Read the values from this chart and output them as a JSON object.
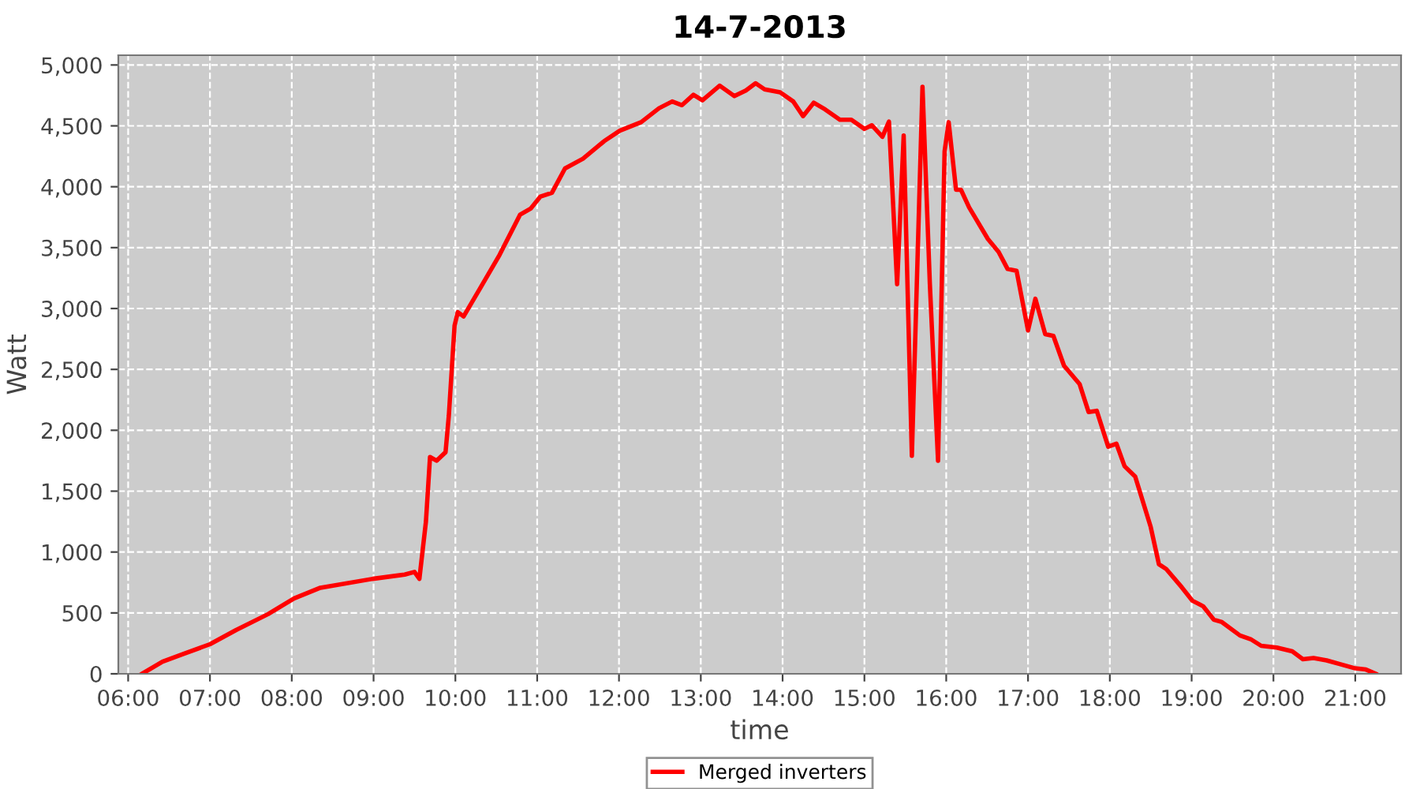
{
  "chart_data": {
    "type": "line",
    "title": "14-7-2013",
    "xlabel": "time",
    "ylabel": "Watt",
    "x": [
      6.17,
      6.42,
      6.68,
      7.0,
      7.32,
      7.71,
      8.03,
      8.35,
      8.99,
      9.38,
      9.5,
      9.56,
      9.64,
      9.69,
      9.77,
      9.88,
      9.92,
      9.99,
      10.03,
      10.1,
      10.28,
      10.54,
      10.79,
      10.92,
      11.04,
      11.18,
      11.34,
      11.56,
      11.82,
      12.01,
      12.27,
      12.49,
      12.65,
      12.77,
      12.91,
      13.02,
      13.23,
      13.41,
      13.55,
      13.67,
      13.78,
      13.97,
      14.13,
      14.25,
      14.38,
      14.52,
      14.7,
      14.84,
      15.0,
      15.09,
      15.22,
      15.3,
      15.4,
      15.48,
      15.58,
      15.71,
      15.8,
      15.9,
      15.98,
      16.03,
      16.12,
      16.18,
      16.28,
      16.51,
      16.64,
      16.75,
      16.86,
      17.0,
      17.09,
      17.21,
      17.31,
      17.44,
      17.63,
      17.74,
      17.84,
      17.98,
      18.08,
      18.18,
      18.31,
      18.5,
      18.6,
      18.69,
      18.88,
      19.01,
      19.14,
      19.27,
      19.37,
      19.59,
      19.72,
      19.85,
      20.04,
      20.23,
      20.36,
      20.49,
      20.65,
      20.81,
      21.0,
      21.13,
      21.25
    ],
    "series": [
      {
        "name": "Merged inverters",
        "color": "#ff0000",
        "values": [
          0,
          100,
          165,
          243,
          360,
          490,
          620,
          707,
          780,
          815,
          837,
          780,
          1250,
          1780,
          1750,
          1820,
          2120,
          2860,
          2970,
          2935,
          3140,
          3440,
          3770,
          3820,
          3920,
          3950,
          4150,
          4230,
          4375,
          4460,
          4530,
          4645,
          4700,
          4670,
          4755,
          4710,
          4830,
          4745,
          4790,
          4850,
          4800,
          4775,
          4700,
          4580,
          4690,
          4635,
          4550,
          4550,
          4475,
          4505,
          4410,
          4535,
          3200,
          4420,
          1790,
          4820,
          3200,
          1750,
          4290,
          4530,
          3975,
          3975,
          3830,
          3570,
          3465,
          3325,
          3310,
          2820,
          3080,
          2790,
          2775,
          2530,
          2380,
          2150,
          2160,
          1865,
          1890,
          1705,
          1620,
          1205,
          900,
          860,
          710,
          600,
          555,
          445,
          425,
          315,
          285,
          230,
          215,
          185,
          120,
          130,
          110,
          80,
          45,
          35,
          0
        ]
      }
    ],
    "xlim": [
      5.88,
      21.56
    ],
    "xticks": [
      {
        "value": 6,
        "label": "06:00"
      },
      {
        "value": 7,
        "label": "07:00"
      },
      {
        "value": 8,
        "label": "08:00"
      },
      {
        "value": 9,
        "label": "09:00"
      },
      {
        "value": 10,
        "label": "10:00"
      },
      {
        "value": 11,
        "label": "11:00"
      },
      {
        "value": 12,
        "label": "12:00"
      },
      {
        "value": 13,
        "label": "13:00"
      },
      {
        "value": 14,
        "label": "14:00"
      },
      {
        "value": 15,
        "label": "15:00"
      },
      {
        "value": 16,
        "label": "16:00"
      },
      {
        "value": 17,
        "label": "17:00"
      },
      {
        "value": 18,
        "label": "18:00"
      },
      {
        "value": 19,
        "label": "19:00"
      },
      {
        "value": 20,
        "label": "20:00"
      },
      {
        "value": 21,
        "label": "21:00"
      }
    ],
    "ylim": [
      0,
      5080
    ],
    "yticks": [
      0,
      500,
      {
        "value": 1000,
        "label": "1,000"
      },
      {
        "value": 1500,
        "label": "1,500"
      },
      {
        "value": 2000,
        "label": "2,000"
      },
      {
        "value": 2500,
        "label": "2,500"
      },
      {
        "value": 3000,
        "label": "3,000"
      },
      {
        "value": 3500,
        "label": "3,500"
      },
      {
        "value": 4000,
        "label": "4,000"
      },
      {
        "value": 4500,
        "label": "4,500"
      },
      {
        "value": 5000,
        "label": "5,000"
      }
    ],
    "grid": true,
    "legend": "bottom",
    "marker": "none",
    "line_style": "solid"
  }
}
